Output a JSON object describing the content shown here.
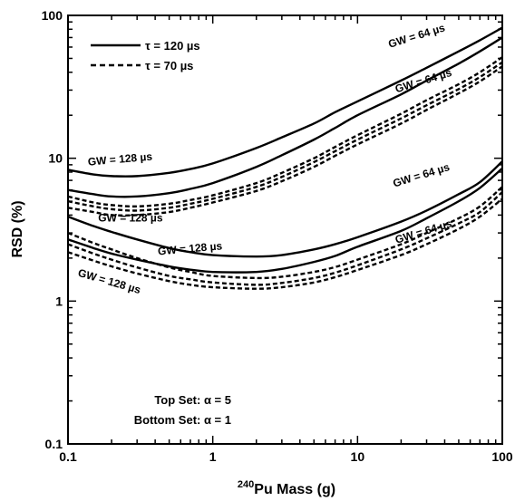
{
  "chart_data": {
    "type": "line",
    "xlabel_sup": "240",
    "xlabel_main": "Pu Mass (g)",
    "ylabel": "RSD (%)",
    "xscale": "log",
    "yscale": "log",
    "xlim": [
      0.1,
      100
    ],
    "ylim": [
      0.1,
      100
    ],
    "x_ticks": [
      {
        "v": 0.1,
        "label": "0.1"
      },
      {
        "v": 1,
        "label": "1"
      },
      {
        "v": 10,
        "label": "10"
      },
      {
        "v": 100,
        "label": "100"
      }
    ],
    "y_ticks": [
      {
        "v": 0.1,
        "label": "0.1"
      },
      {
        "v": 1,
        "label": "1"
      },
      {
        "v": 10,
        "label": "10"
      },
      {
        "v": 100,
        "label": "100"
      }
    ],
    "legend": [
      {
        "label": "τ = 120 µs",
        "style": "solid"
      },
      {
        "label": "τ = 70 µs",
        "style": "dashed"
      }
    ],
    "annotations": [
      "Top Set: α = 5",
      "Bottom Set: α = 1"
    ],
    "series": [
      {
        "set": "top",
        "tau": 120,
        "style": "solid",
        "label": "GW = 128 µs",
        "x": [
          0.1,
          0.15,
          0.2,
          0.3,
          0.5,
          0.7,
          1,
          2,
          3,
          5,
          7,
          10,
          20,
          30,
          50,
          70,
          100
        ],
        "y": [
          8.3,
          7.7,
          7.5,
          7.5,
          7.9,
          8.4,
          9.2,
          11.8,
          14,
          17.5,
          21,
          25,
          35,
          43,
          56,
          67,
          82
        ]
      },
      {
        "set": "top",
        "tau": 120,
        "style": "solid",
        "label": "GW = 64 µs",
        "x": [
          0.1,
          0.15,
          0.2,
          0.3,
          0.5,
          0.7,
          1,
          2,
          3,
          5,
          7,
          10,
          20,
          30,
          50,
          70,
          100
        ],
        "y": [
          6,
          5.6,
          5.4,
          5.4,
          5.7,
          6.1,
          6.7,
          8.7,
          10.5,
          13.5,
          16.3,
          20,
          28,
          35,
          46,
          56,
          70
        ]
      },
      {
        "set": "top",
        "tau": 70,
        "style": "dashed",
        "label": "GW = 128 µs",
        "x": [
          0.1,
          0.15,
          0.2,
          0.3,
          0.5,
          0.7,
          1,
          2,
          3,
          5,
          7,
          10,
          20,
          30,
          50,
          70,
          100
        ],
        "y": [
          5.4,
          4.9,
          4.7,
          4.6,
          4.8,
          5.1,
          5.5,
          6.7,
          7.9,
          10,
          12,
          14.5,
          20.5,
          25.5,
          33,
          40,
          51
        ]
      },
      {
        "set": "top",
        "tau": 70,
        "style": "dashed",
        "label": "",
        "x": [
          0.1,
          0.15,
          0.2,
          0.3,
          0.5,
          0.7,
          1,
          2,
          3,
          5,
          7,
          10,
          20,
          30,
          50,
          70,
          100
        ],
        "y": [
          5,
          4.6,
          4.4,
          4.3,
          4.5,
          4.8,
          5.2,
          6.3,
          7.4,
          9.4,
          11.2,
          13.5,
          19,
          23.5,
          30.5,
          37,
          47
        ]
      },
      {
        "set": "top",
        "tau": 70,
        "style": "dashed",
        "label": "GW = 64 µs",
        "x": [
          0.1,
          0.15,
          0.2,
          0.3,
          0.5,
          0.7,
          1,
          2,
          3,
          5,
          7,
          10,
          20,
          30,
          50,
          70,
          100
        ],
        "y": [
          4.5,
          4.2,
          4,
          4,
          4.2,
          4.5,
          4.9,
          5.9,
          6.9,
          8.7,
          10.4,
          12.5,
          17.5,
          21.8,
          28.5,
          34.5,
          44
        ]
      },
      {
        "set": "bottom",
        "tau": 120,
        "style": "solid",
        "label": "GW = 128 µs",
        "x": [
          0.1,
          0.15,
          0.2,
          0.3,
          0.5,
          0.7,
          1,
          2,
          3,
          5,
          7,
          10,
          20,
          30,
          50,
          70,
          100
        ],
        "y": [
          3.9,
          3.35,
          3.05,
          2.7,
          2.35,
          2.2,
          2.1,
          2.05,
          2.1,
          2.3,
          2.5,
          2.8,
          3.6,
          4.3,
          5.6,
          6.8,
          9.5
        ]
      },
      {
        "set": "bottom",
        "tau": 120,
        "style": "solid",
        "label": "GW = 64 µs",
        "x": [
          0.1,
          0.15,
          0.2,
          0.3,
          0.5,
          0.7,
          1,
          2,
          3,
          5,
          7,
          10,
          20,
          30,
          50,
          70,
          100
        ],
        "y": [
          2.7,
          2.35,
          2.15,
          1.95,
          1.75,
          1.66,
          1.6,
          1.6,
          1.68,
          1.88,
          2.07,
          2.4,
          3.1,
          3.8,
          5,
          6.2,
          8.5
        ]
      },
      {
        "set": "bottom",
        "tau": 70,
        "style": "dashed",
        "label": "",
        "x": [
          0.1,
          0.15,
          0.2,
          0.3,
          0.5,
          0.7,
          1,
          2,
          3,
          5,
          7,
          10,
          20,
          30,
          50,
          70,
          100
        ],
        "y": [
          3,
          2.55,
          2.3,
          2,
          1.72,
          1.6,
          1.5,
          1.45,
          1.48,
          1.6,
          1.73,
          1.95,
          2.5,
          3,
          3.8,
          4.6,
          6.3
        ]
      },
      {
        "set": "bottom",
        "tau": 70,
        "style": "dashed",
        "label": "GW = 128 µs",
        "x": [
          0.1,
          0.15,
          0.2,
          0.3,
          0.5,
          0.7,
          1,
          2,
          3,
          5,
          7,
          10,
          20,
          30,
          50,
          70,
          100
        ],
        "y": [
          2.5,
          2.15,
          1.95,
          1.72,
          1.5,
          1.42,
          1.35,
          1.3,
          1.34,
          1.45,
          1.58,
          1.78,
          2.3,
          2.75,
          3.5,
          4.2,
          5.8
        ]
      },
      {
        "set": "bottom",
        "tau": 70,
        "style": "dashed",
        "label": "GW = 64 µs",
        "x": [
          0.1,
          0.15,
          0.2,
          0.3,
          0.5,
          0.7,
          1,
          2,
          3,
          5,
          7,
          10,
          20,
          30,
          50,
          70,
          100
        ],
        "y": [
          2.2,
          1.92,
          1.75,
          1.56,
          1.38,
          1.3,
          1.25,
          1.22,
          1.25,
          1.35,
          1.47,
          1.65,
          2.1,
          2.5,
          3.2,
          3.9,
          5.2
        ]
      }
    ],
    "curve_labels": [
      {
        "text": "GW = 64 µs",
        "x": 26,
        "y": 68,
        "rotate": -17
      },
      {
        "text": "GW = 64 µs",
        "x": 29,
        "y": 33,
        "rotate": -17
      },
      {
        "text": "GW = 128 µs",
        "x": 0.23,
        "y": 9.3,
        "rotate": -5
      },
      {
        "text": "GW = 128 µs",
        "x": 0.27,
        "y": 3.6,
        "rotate": 0
      },
      {
        "text": "GW = 64 µs",
        "x": 28,
        "y": 7.2,
        "rotate": -17
      },
      {
        "text": "GW = 64 µs",
        "x": 29,
        "y": 2.9,
        "rotate": -17
      },
      {
        "text": "GW = 128 µs",
        "x": 0.7,
        "y": 2.2,
        "rotate": -5
      },
      {
        "text": "GW = 128 µs",
        "x": 0.19,
        "y": 1.3,
        "rotate": 16
      }
    ]
  }
}
